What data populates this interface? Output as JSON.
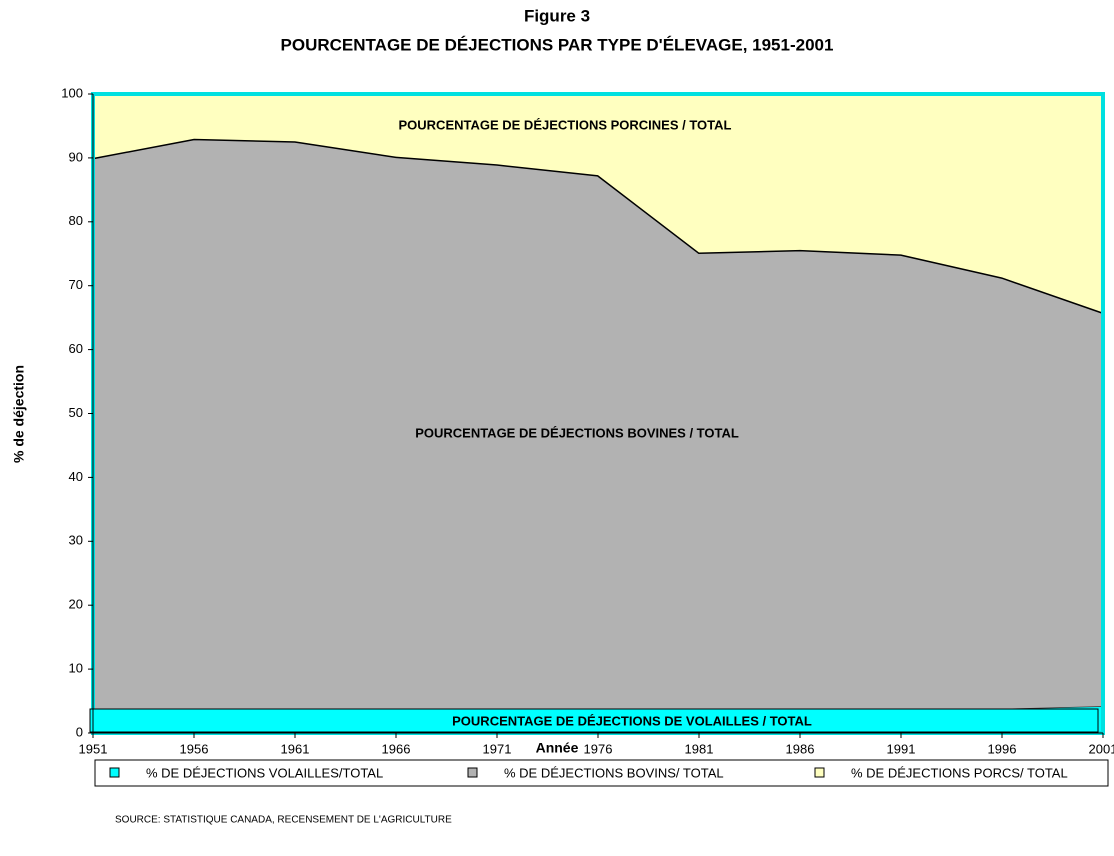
{
  "chart_data": {
    "type": "area",
    "title": "Figure 3",
    "subtitle": "POURCENTAGE DE DÉJECTIONS PAR TYPE D'ÉLEVAGE, 1951-2001",
    "x_label": "Année",
    "y_label": "% de déjection",
    "x": [
      1951,
      1956,
      1961,
      1966,
      1971,
      1976,
      1981,
      1986,
      1991,
      1996,
      2001
    ],
    "series": [
      {
        "name": "% DE DÉJECTIONS VOLAILLES/TOTAL",
        "color": "#00ffff",
        "values": [
          2.3,
          2.2,
          2.4,
          3.0,
          3.6,
          3.5,
          3.1,
          3.3,
          3.8,
          3.8,
          4.2
        ]
      },
      {
        "name": "% DE DÉJECTIONS BOVINS/ TOTAL",
        "color": "#b2b2b2",
        "values": [
          87.7,
          90.8,
          90.2,
          87.2,
          85.4,
          83.8,
          72.1,
          72.3,
          71.1,
          67.5,
          61.6
        ]
      },
      {
        "name": "% DE DÉJECTIONS PORCS/ TOTAL",
        "color": "#ffffc0",
        "values": [
          10.0,
          7.0,
          7.4,
          9.8,
          11.0,
          12.7,
          24.8,
          24.4,
          25.1,
          28.7,
          34.2
        ]
      }
    ],
    "annotations": [
      "POURCENTAGE DE DÉJECTIONS PORCINES / TOTAL",
      "POURCENTAGE DE DÉJECTIONS BOVINES / TOTAL",
      "POURCENTAGE DE DÉJECTIONS DE VOLAILLES / TOTAL"
    ],
    "source": "SOURCE:  STATISTIQUE CANADA, RECENSEMENT DE L'AGRICULTURE",
    "xlim": [
      1951,
      2001
    ],
    "xticks": [
      1951,
      1956,
      1961,
      1966,
      1971,
      1976,
      1981,
      1986,
      1991,
      1996,
      2001
    ],
    "ylim": [
      0,
      100
    ],
    "yticks": [
      0,
      10,
      20,
      30,
      40,
      50,
      60,
      70,
      80,
      90,
      100
    ],
    "legend": "bottom"
  }
}
